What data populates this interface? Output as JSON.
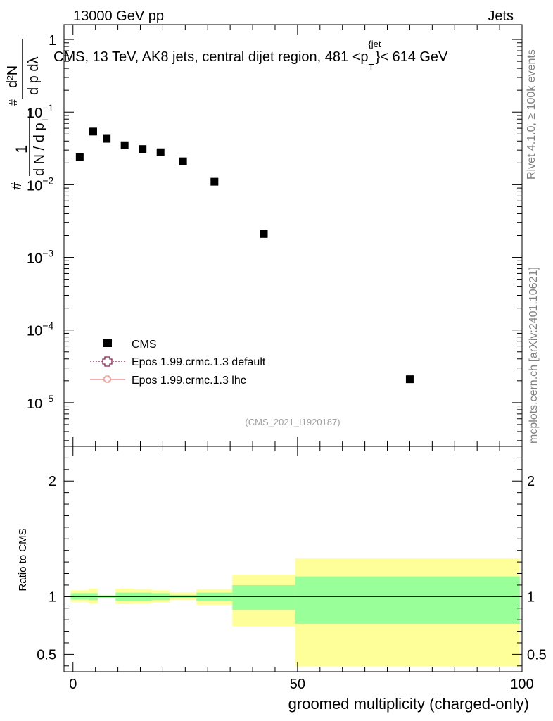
{
  "header": {
    "energy_label": "13000 GeV pp",
    "process_label": "Jets"
  },
  "side_labels": {
    "rivet": "Rivet 4.1.0, ≥ 100k events",
    "mcplots": "mcplots.cern.ch [arXiv:2401.10621]"
  },
  "chart_data": [
    {
      "type": "scatter",
      "panel": "main",
      "title": "CMS, 13 TeV, AK8 jets, central dijet region, 481 <p_T^{jet}< 614 GeV",
      "title_parts": {
        "prefix": "CMS, 13 TeV, AK8 jets, central dijet region, 481 <p",
        "sub": "T",
        "sup": "{jet",
        "suffix": "}< 614 GeV"
      },
      "ylabel": "1 / (dN/dp_T) · d²N/(dp_T dλ)",
      "ylabel_parts": {
        "hash": "#",
        "one": "1",
        "frac_bottom": "d N / d p",
        "sub": "T",
        "num": "d²N",
        "den": "d p  dλ",
        "den_sub": "T"
      },
      "yscale": "log",
      "ylim": [
        2.5e-06,
        1.6
      ],
      "xlim": [
        -2,
        100
      ],
      "y_ticks": [
        {
          "value": 1,
          "label": "1"
        },
        {
          "value": 0.1,
          "label": "10",
          "exp": "−1"
        },
        {
          "value": 0.01,
          "label": "10",
          "exp": "−2"
        },
        {
          "value": 0.001,
          "label": "10",
          "exp": "−3"
        },
        {
          "value": 0.0001,
          "label": "10",
          "exp": "−4"
        },
        {
          "value": 1e-05,
          "label": "10",
          "exp": "−5"
        }
      ],
      "series": [
        {
          "name": "CMS",
          "marker": "square",
          "color": "#000000",
          "x": [
            1.5,
            4.5,
            7.5,
            11.5,
            15.5,
            19.5,
            24.5,
            31.5,
            42.5,
            75
          ],
          "y": [
            0.024,
            0.054,
            0.043,
            0.035,
            0.031,
            0.028,
            0.021,
            0.011,
            0.0021,
            2.1e-05
          ]
        },
        {
          "name": "Epos 1.99.crmc.1.3 default",
          "marker": "open-cross",
          "color": "#8b2252",
          "line": "dotted",
          "x": [],
          "y": []
        },
        {
          "name": "Epos 1.99.crmc.1.3 lhc",
          "marker": "open-cross",
          "color": "#ee7c74",
          "line": "solid",
          "x": [],
          "y": []
        }
      ],
      "legend_position": "lower-left",
      "watermark": "(CMS_2021_I1920187)"
    },
    {
      "type": "area",
      "panel": "ratio",
      "ylabel": "Ratio to CMS",
      "xlabel": "groomed multiplicity (charged-only)",
      "ylim": [
        0.35,
        2.3
      ],
      "xlim": [
        -2,
        100
      ],
      "y_ticks": [
        {
          "value": 0.5,
          "label": "0.5"
        },
        {
          "value": 1,
          "label": "1"
        },
        {
          "value": 2,
          "label": "2"
        }
      ],
      "x_ticks": [
        {
          "value": 0,
          "label": "0"
        },
        {
          "value": 50,
          "label": "50"
        },
        {
          "value": 100,
          "label": "100"
        }
      ],
      "reference_line": 1,
      "bands": {
        "colors": {
          "outer": "#ffff99",
          "inner": "#99ff99"
        },
        "bins": [
          {
            "x_lo": -0.5,
            "x_hi": 3.5,
            "outer_lo": 0.955,
            "outer_hi": 1.055,
            "inner_lo": 0.975,
            "inner_hi": 1.03
          },
          {
            "x_lo": 3.5,
            "x_hi": 5.5,
            "outer_lo": 0.94,
            "outer_hi": 1.07,
            "inner_lo": 0.97,
            "inner_hi": 1.03
          },
          {
            "x_lo": 5.5,
            "x_hi": 9.5,
            "outer_lo": 0.985,
            "outer_hi": 1.015,
            "inner_lo": 0.99,
            "inner_hi": 1.01
          },
          {
            "x_lo": 9.5,
            "x_hi": 13.5,
            "outer_lo": 0.935,
            "outer_hi": 1.07,
            "inner_lo": 0.965,
            "inner_hi": 1.035
          },
          {
            "x_lo": 13.5,
            "x_hi": 17.5,
            "outer_lo": 0.94,
            "outer_hi": 1.065,
            "inner_lo": 0.965,
            "inner_hi": 1.035
          },
          {
            "x_lo": 17.5,
            "x_hi": 21.5,
            "outer_lo": 0.95,
            "outer_hi": 1.055,
            "inner_lo": 0.97,
            "inner_hi": 1.03
          },
          {
            "x_lo": 21.5,
            "x_hi": 27.5,
            "outer_lo": 0.97,
            "outer_hi": 1.035,
            "inner_lo": 0.985,
            "inner_hi": 1.015
          },
          {
            "x_lo": 27.5,
            "x_hi": 35.5,
            "outer_lo": 0.93,
            "outer_hi": 1.065,
            "inner_lo": 0.96,
            "inner_hi": 1.035
          },
          {
            "x_lo": 35.5,
            "x_hi": 49.5,
            "outer_lo": 0.745,
            "outer_hi": 1.19,
            "inner_lo": 0.885,
            "inner_hi": 1.1
          },
          {
            "x_lo": 49.5,
            "x_hi": 99.5,
            "outer_lo": 0.395,
            "outer_hi": 1.33,
            "inner_lo": 0.765,
            "inner_hi": 1.175
          }
        ]
      }
    }
  ]
}
